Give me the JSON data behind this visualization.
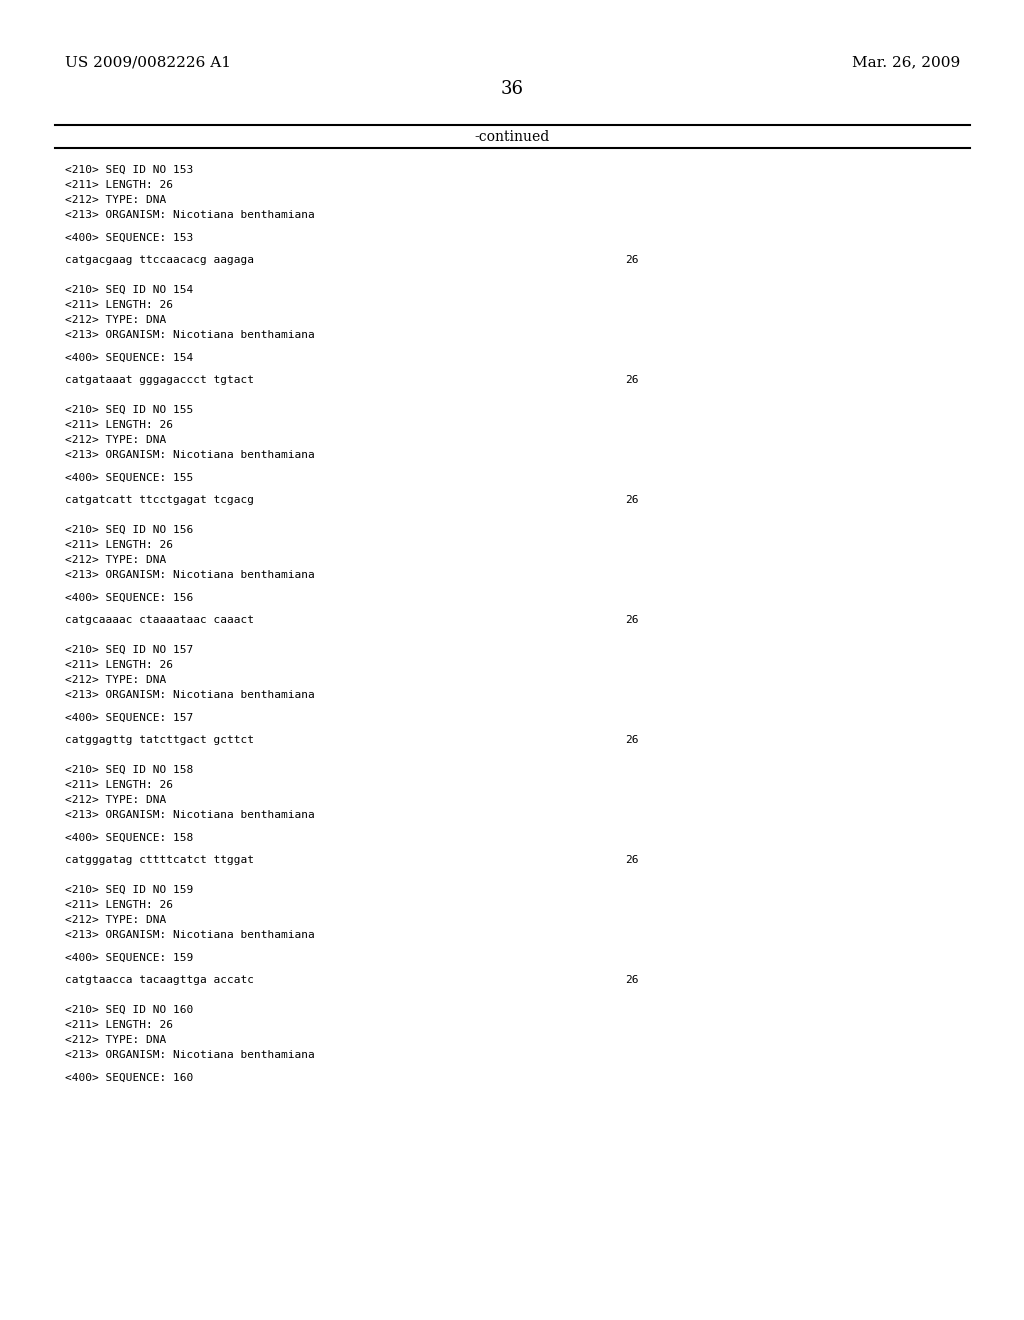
{
  "top_left": "US 2009/0082226 A1",
  "top_right": "Mar. 26, 2009",
  "page_number": "36",
  "continued_label": "-continued",
  "background_color": "#ffffff",
  "text_color": "#000000",
  "entries": [
    {
      "seq_id": "153",
      "length": "26",
      "type": "DNA",
      "organism": "Nicotiana benthamiana",
      "sequence_num": "153",
      "sequence": "catgacgaag ttccaacacg aagaga",
      "seq_length_val": "26"
    },
    {
      "seq_id": "154",
      "length": "26",
      "type": "DNA",
      "organism": "Nicotiana benthamiana",
      "sequence_num": "154",
      "sequence": "catgataaat gggagaccct tgtact",
      "seq_length_val": "26"
    },
    {
      "seq_id": "155",
      "length": "26",
      "type": "DNA",
      "organism": "Nicotiana benthamiana",
      "sequence_num": "155",
      "sequence": "catgatcatt ttcctgagat tcgacg",
      "seq_length_val": "26"
    },
    {
      "seq_id": "156",
      "length": "26",
      "type": "DNA",
      "organism": "Nicotiana benthamiana",
      "sequence_num": "156",
      "sequence": "catgcaaaac ctaaaataac caaact",
      "seq_length_val": "26"
    },
    {
      "seq_id": "157",
      "length": "26",
      "type": "DNA",
      "organism": "Nicotiana benthamiana",
      "sequence_num": "157",
      "sequence": "catggagttg tatcttgact gcttct",
      "seq_length_val": "26"
    },
    {
      "seq_id": "158",
      "length": "26",
      "type": "DNA",
      "organism": "Nicotiana benthamiana",
      "sequence_num": "158",
      "sequence": "catgggatag cttttcatct ttggat",
      "seq_length_val": "26"
    },
    {
      "seq_id": "159",
      "length": "26",
      "type": "DNA",
      "organism": "Nicotiana benthamiana",
      "sequence_num": "159",
      "sequence": "catgtaacca tacaagttga accatc",
      "seq_length_val": "26"
    },
    {
      "seq_id": "160",
      "length": "26",
      "type": "DNA",
      "organism": "Nicotiana benthamiana",
      "sequence_num": "160",
      "sequence": null,
      "seq_length_val": null
    }
  ]
}
